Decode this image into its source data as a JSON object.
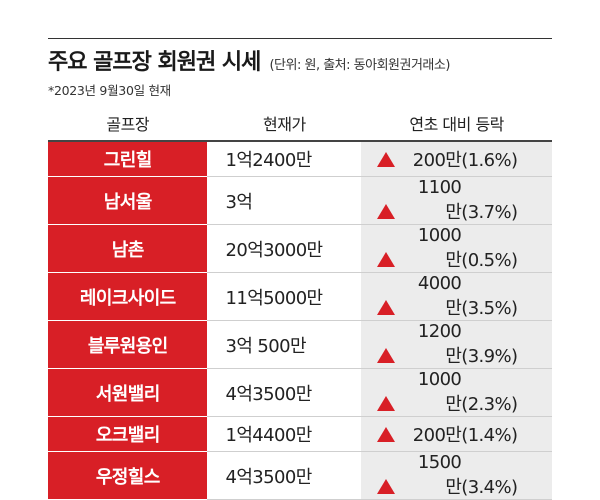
{
  "title": "주요 골프장 회원권 시세",
  "unit_source": "(단위: 원, 출처: 동아회원권거래소)",
  "date_note": "*2023년 9월30일 현재",
  "colors": {
    "accent_red": "#d81f26",
    "change_bg": "#ececec"
  },
  "chart_data": {
    "type": "table",
    "title": "주요 골프장 회원권 시세",
    "columns": [
      "골프장",
      "현재가",
      "연초 대비 등락"
    ],
    "rows": [
      {
        "name": "그린힐",
        "price": "1억2400만",
        "direction": "up",
        "change": "200만",
        "pct": "(1.6%)"
      },
      {
        "name": "남서울",
        "price": "3억",
        "direction": "up",
        "change": "1100만",
        "pct": "(3.7%)"
      },
      {
        "name": "남촌",
        "price": "20억3000만",
        "direction": "up",
        "change": "1000만",
        "pct": "(0.5%)"
      },
      {
        "name": "레이크사이드",
        "price": "11억5000만",
        "direction": "up",
        "change": "4000만",
        "pct": "(3.5%)"
      },
      {
        "name": "블루원용인",
        "price": "3억  500만",
        "direction": "up",
        "change": "1200만",
        "pct": "(3.9%)"
      },
      {
        "name": "서원밸리",
        "price": "4억3500만",
        "direction": "up",
        "change": "1000만",
        "pct": "(2.3%)"
      },
      {
        "name": "오크밸리",
        "price": "1억4400만",
        "direction": "up",
        "change": "200만",
        "pct": "(1.4%)"
      },
      {
        "name": "우정힐스",
        "price": "4억3500만",
        "direction": "up",
        "change": "1500만",
        "pct": "(3.4%)"
      }
    ]
  }
}
